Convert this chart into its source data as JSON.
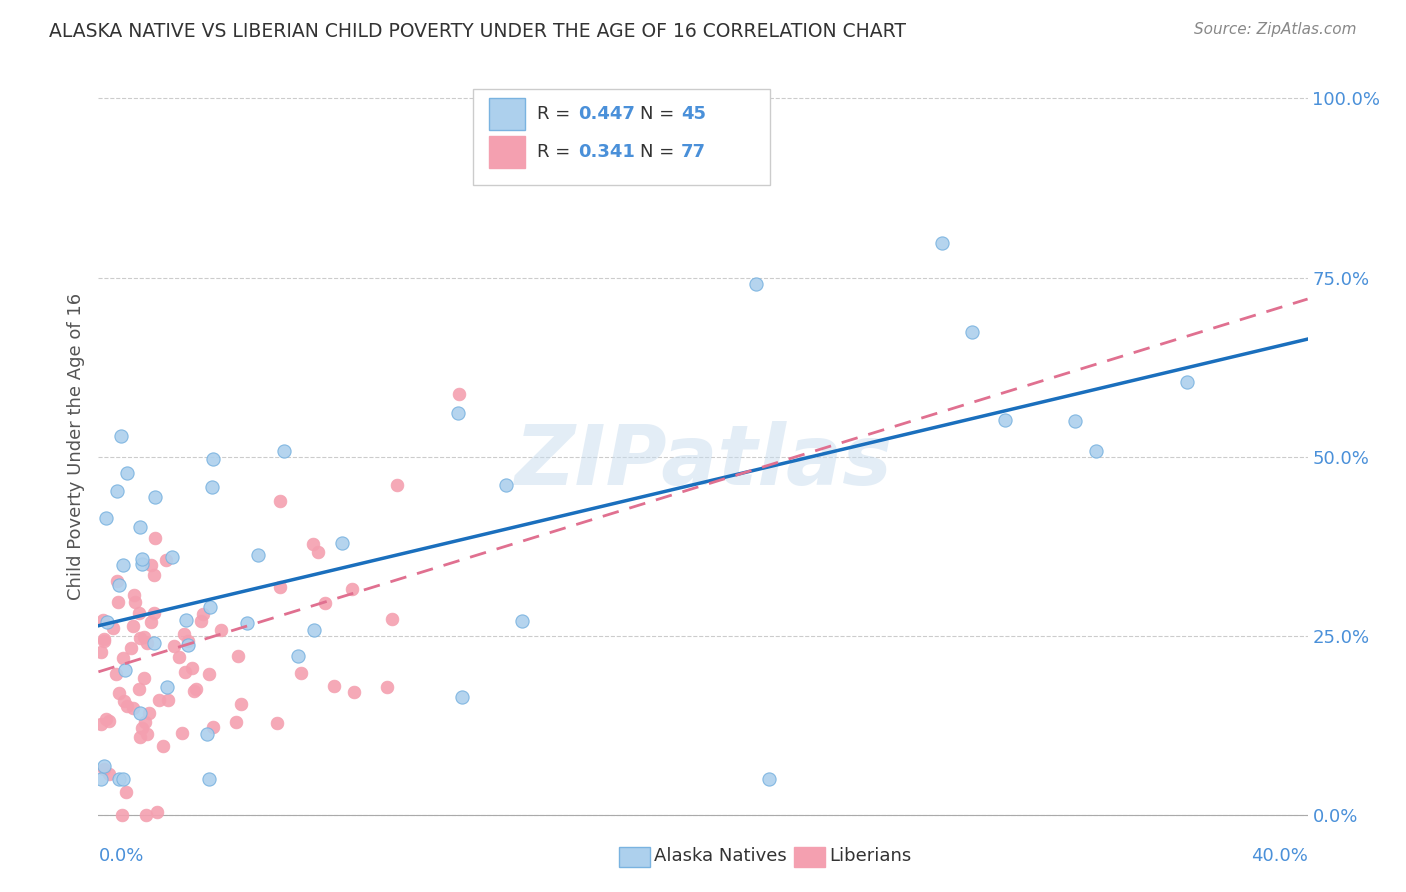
{
  "title": "ALASKA NATIVE VS LIBERIAN CHILD POVERTY UNDER THE AGE OF 16 CORRELATION CHART",
  "source": "Source: ZipAtlas.com",
  "ylabel": "Child Poverty Under the Age of 16",
  "ytick_values": [
    0.0,
    0.25,
    0.5,
    0.75,
    1.0
  ],
  "xlim": [
    0.0,
    0.4
  ],
  "ylim": [
    -0.02,
    1.05
  ],
  "alaska_fill": "#add0ed",
  "alaska_edge": "#7ab3e0",
  "liberian_fill": "#f4a0b0",
  "liberian_edge": "#f4a0b0",
  "trendline_alaska": "#1a6fbd",
  "trendline_liberian": "#e07090",
  "watermark": "ZIPatlas",
  "alaska_R": 0.447,
  "alaska_N": 45,
  "liberian_R": 0.341,
  "liberian_N": 77,
  "alaska_seed": 42,
  "liberian_seed": 7,
  "background_color": "#ffffff",
  "grid_color": "#cccccc",
  "title_color": "#333333",
  "source_color": "#888888",
  "axis_label_color": "#4a90d9",
  "legend_text_color": "#333333"
}
